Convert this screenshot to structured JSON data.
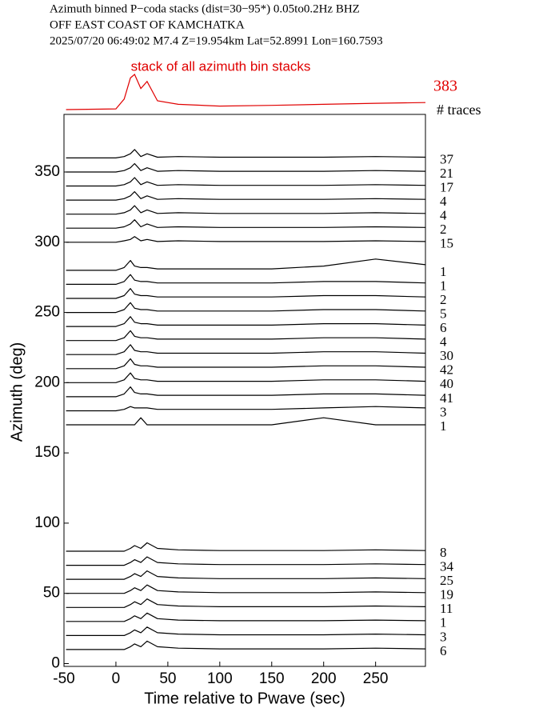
{
  "chart_data": {
    "type": "line",
    "title_lines": [
      "Azimuth binned P−coda stacks (dist=30−95*)  0.05to0.2Hz  BHZ",
      "OFF EAST COAST OF KAMCHATKA",
      "2025/07/20  06:49:02  M7.4  Z=19.954km Lat=52.8991 Lon=160.7593"
    ],
    "xlabel": "Time relative to Pwave (sec)",
    "ylabel": "Azimuth (deg)",
    "xlim": [
      -50,
      298
    ],
    "xticks": [
      -50,
      0,
      50,
      100,
      150,
      200,
      250
    ],
    "ylim": [
      -2,
      391
    ],
    "yticks": [
      0,
      50,
      100,
      150,
      200,
      250,
      300,
      350
    ],
    "legend_title": "# traces",
    "x": [
      -48,
      0,
      8,
      14,
      18,
      24,
      30,
      40,
      60,
      100,
      150,
      200,
      250,
      298
    ],
    "stack": {
      "label": "stack of all azimuth bin stacks",
      "name": "383",
      "color": "#e00000",
      "values": [
        0,
        0.02,
        0.3,
        0.9,
        1,
        0.6,
        0.8,
        0.25,
        0.15,
        0.1,
        0.12,
        0.15,
        0.18,
        0.2
      ]
    },
    "series": [
      {
        "name": "37",
        "color": "#000000",
        "values": [
          360,
          360,
          361,
          363,
          366,
          361,
          363,
          360.5,
          361,
          360.5,
          360.5,
          360.5,
          361,
          360.5
        ]
      },
      {
        "name": "21",
        "color": "#000000",
        "values": [
          350,
          350,
          351,
          353,
          356,
          351,
          353,
          350.5,
          351,
          350.5,
          350.5,
          350.5,
          351,
          350.5
        ]
      },
      {
        "name": "17",
        "color": "#000000",
        "values": [
          340,
          340,
          341,
          343,
          346,
          341,
          343,
          340.5,
          341,
          340.5,
          340.5,
          340.5,
          341,
          340.5
        ]
      },
      {
        "name": "4",
        "color": "#000000",
        "values": [
          330,
          330,
          331,
          333,
          336,
          331,
          333,
          330.5,
          331,
          330.5,
          330.5,
          330.5,
          331,
          330.5
        ]
      },
      {
        "name": "4",
        "color": "#000000",
        "values": [
          320,
          320,
          321,
          323,
          326,
          321,
          323,
          320.5,
          321,
          320.5,
          320.5,
          320.5,
          321,
          320.5
        ]
      },
      {
        "name": "2",
        "color": "#000000",
        "values": [
          310,
          310,
          311,
          313,
          316,
          311,
          313,
          310.5,
          311,
          310.5,
          310.5,
          310.5,
          311,
          310.5
        ]
      },
      {
        "name": "15",
        "color": "#000000",
        "values": [
          300,
          300,
          301,
          302,
          304,
          301,
          302,
          300.5,
          301,
          300.5,
          300.5,
          300.5,
          301,
          300.5
        ]
      },
      {
        "name": "1",
        "color": "#000000",
        "values": [
          280,
          280,
          282,
          287,
          283,
          282,
          282,
          281,
          281,
          281,
          281,
          283,
          288,
          284
        ]
      },
      {
        "name": "1",
        "color": "#000000",
        "values": [
          270,
          270,
          272,
          277,
          273,
          272,
          272,
          271,
          271,
          271,
          271,
          272,
          272,
          271
        ]
      },
      {
        "name": "2",
        "color": "#000000",
        "values": [
          260,
          260,
          262,
          267,
          263,
          262,
          262,
          261,
          261,
          261,
          261,
          262,
          262,
          261
        ]
      },
      {
        "name": "5",
        "color": "#000000",
        "values": [
          250,
          250,
          252,
          257,
          253,
          252,
          252,
          251,
          251,
          251,
          251,
          252,
          252,
          251
        ]
      },
      {
        "name": "6",
        "color": "#000000",
        "values": [
          240,
          240,
          242,
          247,
          243,
          242,
          242,
          241,
          241,
          241,
          241,
          242,
          242,
          241
        ]
      },
      {
        "name": "4",
        "color": "#000000",
        "values": [
          230,
          230,
          232,
          237,
          233,
          232,
          232,
          231,
          231,
          231,
          231,
          232,
          232,
          231
        ]
      },
      {
        "name": "30",
        "color": "#000000",
        "values": [
          220,
          220,
          222,
          227,
          223,
          222,
          222,
          221,
          221,
          221,
          221,
          222,
          222,
          221
        ]
      },
      {
        "name": "42",
        "color": "#000000",
        "values": [
          210,
          210,
          212,
          217,
          213,
          212,
          212,
          211,
          211,
          211,
          211,
          212,
          212,
          211
        ]
      },
      {
        "name": "40",
        "color": "#000000",
        "values": [
          200,
          200,
          202,
          207,
          203,
          202,
          202,
          201,
          201,
          201,
          201,
          202,
          202,
          201
        ]
      },
      {
        "name": "41",
        "color": "#000000",
        "values": [
          190,
          190,
          192,
          197,
          193,
          192,
          192,
          191,
          191,
          191,
          191,
          192,
          192,
          191
        ]
      },
      {
        "name": "3",
        "color": "#000000",
        "values": [
          180,
          180,
          181,
          183,
          182,
          182,
          182,
          181,
          181,
          181,
          181,
          182,
          183,
          182
        ]
      },
      {
        "name": "1",
        "color": "#000000",
        "values": [
          170,
          170,
          170,
          170,
          170,
          175,
          170,
          170,
          170,
          170,
          170,
          175,
          170,
          170
        ]
      },
      {
        "name": "8",
        "color": "#000000",
        "values": [
          80,
          80,
          80,
          82,
          84,
          82,
          86,
          82,
          81,
          80.5,
          80.5,
          80.5,
          81,
          80.5
        ]
      },
      {
        "name": "34",
        "color": "#000000",
        "values": [
          70,
          70,
          70,
          72,
          74,
          72,
          76,
          72,
          71,
          70.5,
          70.5,
          70.5,
          71,
          70.5
        ]
      },
      {
        "name": "25",
        "color": "#000000",
        "values": [
          60,
          60,
          60,
          62,
          64,
          62,
          66,
          62,
          61,
          60.5,
          60.5,
          60.5,
          61,
          60.5
        ]
      },
      {
        "name": "19",
        "color": "#000000",
        "values": [
          50,
          50,
          50,
          52,
          54,
          52,
          56,
          52,
          51,
          50.5,
          50.5,
          50.5,
          51,
          50.5
        ]
      },
      {
        "name": "11",
        "color": "#000000",
        "values": [
          40,
          40,
          40,
          42,
          44,
          42,
          46,
          42,
          41,
          40.5,
          40.5,
          40.5,
          41,
          40.5
        ]
      },
      {
        "name": "1",
        "color": "#000000",
        "values": [
          30,
          30,
          30,
          32,
          34,
          32,
          36,
          32,
          31,
          30.5,
          30.5,
          30.5,
          31,
          30.5
        ]
      },
      {
        "name": "3",
        "color": "#000000",
        "values": [
          20,
          20,
          20,
          22,
          24,
          22,
          26,
          22,
          21,
          20.5,
          20.5,
          20.5,
          21,
          20.5
        ]
      },
      {
        "name": "6",
        "color": "#000000",
        "values": [
          10,
          10,
          10,
          12,
          14,
          12,
          16,
          12,
          11,
          10.5,
          10.5,
          10.5,
          11,
          10.5
        ]
      }
    ]
  }
}
